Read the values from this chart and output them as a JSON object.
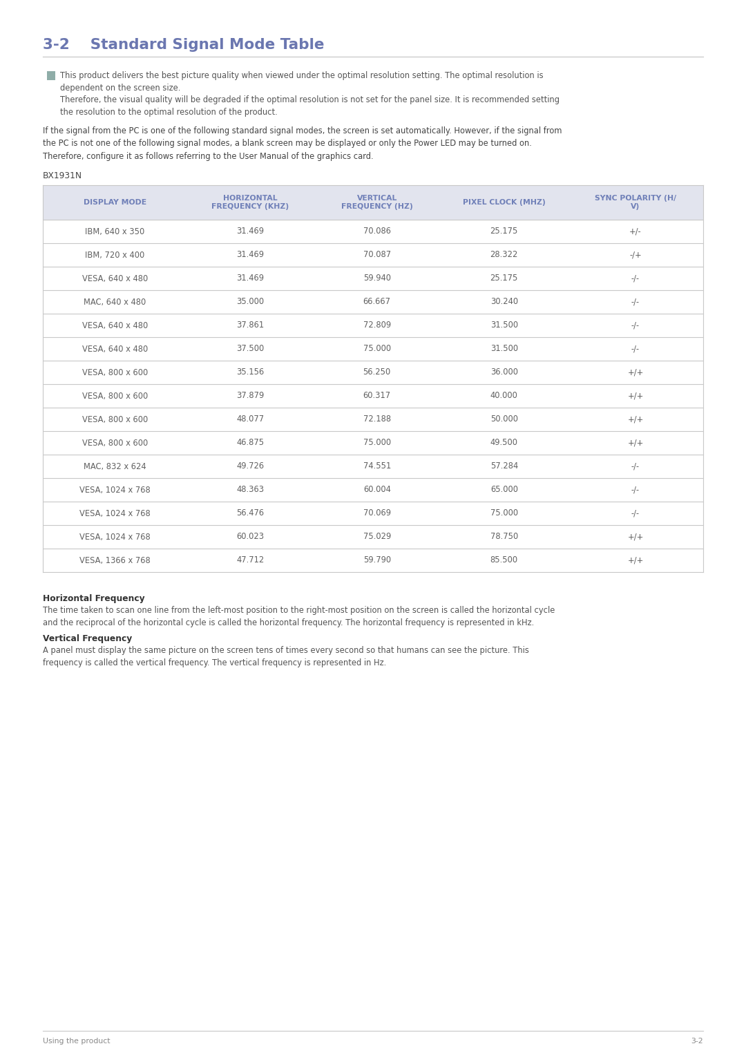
{
  "page_title": "3-2    Standard Signal Mode Table",
  "title_color": "#6b77b0",
  "note_text1": "This product delivers the best picture quality when viewed under the optimal resolution setting. The optimal resolution is\ndependent on the screen size.",
  "note_text2": "Therefore, the visual quality will be degraded if the optimal resolution is not set for the panel size. It is recommended setting\nthe resolution to the optimal resolution of the product.",
  "body_text": "If the signal from the PC is one of the following standard signal modes, the screen is set automatically. However, if the signal from\nthe PC is not one of the following signal modes, a blank screen may be displayed or only the Power LED may be turned on.\nTherefore, configure it as follows referring to the User Manual of the graphics card.",
  "model_label": "BX1931N",
  "table_header": [
    "DISPLAY MODE",
    "HORIZONTAL\nFREQUENCY (KHZ)",
    "VERTICAL\nFREQUENCY (HZ)",
    "PIXEL CLOCK (MHZ)",
    "SYNC POLARITY (H/\nV)"
  ],
  "table_header_color": "#7080b8",
  "table_header_bg": "#e2e4ee",
  "table_border_color": "#c8c8c8",
  "table_data": [
    [
      "IBM, 640 x 350",
      "31.469",
      "70.086",
      "25.175",
      "+/-"
    ],
    [
      "IBM, 720 x 400",
      "31.469",
      "70.087",
      "28.322",
      "-/+"
    ],
    [
      "VESA, 640 x 480",
      "31.469",
      "59.940",
      "25.175",
      "-/-"
    ],
    [
      "MAC, 640 x 480",
      "35.000",
      "66.667",
      "30.240",
      "-/-"
    ],
    [
      "VESA, 640 x 480",
      "37.861",
      "72.809",
      "31.500",
      "-/-"
    ],
    [
      "VESA, 640 x 480",
      "37.500",
      "75.000",
      "31.500",
      "-/-"
    ],
    [
      "VESA, 800 x 600",
      "35.156",
      "56.250",
      "36.000",
      "+/+"
    ],
    [
      "VESA, 800 x 600",
      "37.879",
      "60.317",
      "40.000",
      "+/+"
    ],
    [
      "VESA, 800 x 600",
      "48.077",
      "72.188",
      "50.000",
      "+/+"
    ],
    [
      "VESA, 800 x 600",
      "46.875",
      "75.000",
      "49.500",
      "+/+"
    ],
    [
      "MAC, 832 x 624",
      "49.726",
      "74.551",
      "57.284",
      "-/-"
    ],
    [
      "VESA, 1024 x 768",
      "48.363",
      "60.004",
      "65.000",
      "-/-"
    ],
    [
      "VESA, 1024 x 768",
      "56.476",
      "70.069",
      "75.000",
      "-/-"
    ],
    [
      "VESA, 1024 x 768",
      "60.023",
      "75.029",
      "78.750",
      "+/+"
    ],
    [
      "VESA, 1366 x 768",
      "47.712",
      "59.790",
      "85.500",
      "+/+"
    ]
  ],
  "horiz_freq_title": "Horizontal Frequency",
  "horiz_freq_body": "The time taken to scan one line from the left-most position to the right-most position on the screen is called the horizontal cycle\nand the reciprocal of the horizontal cycle is called the horizontal frequency. The horizontal frequency is represented in kHz.",
  "vert_freq_title": "Vertical Frequency",
  "vert_freq_body": "A panel must display the same picture on the screen tens of times every second so that humans can see the picture. This\nfrequency is called the vertical frequency. The vertical frequency is represented in Hz.",
  "footer_left": "Using the product",
  "footer_right": "3-2",
  "bg_color": "#ffffff"
}
